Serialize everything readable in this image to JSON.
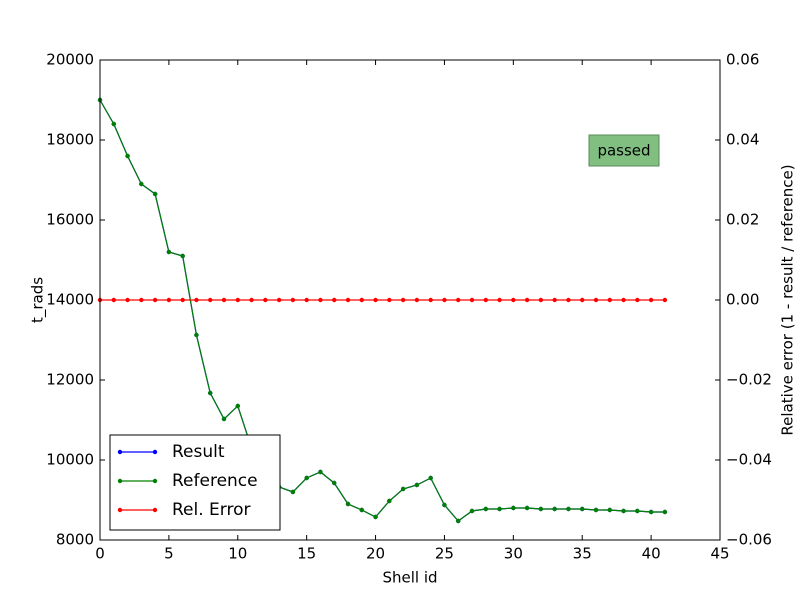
{
  "chart_data": {
    "type": "line",
    "xlabel": "Shell id",
    "ylabel": "t_rads",
    "y2label": "Relative error (1 - result / reference)",
    "annotation": "passed",
    "annotation_color": "#80bf80",
    "legend": "lower left",
    "x": [
      0,
      1,
      2,
      3,
      4,
      5,
      6,
      7,
      8,
      9,
      10,
      11,
      12,
      13,
      14,
      15,
      16,
      17,
      18,
      19,
      20,
      21,
      22,
      23,
      24,
      25,
      26,
      27,
      28,
      29,
      30,
      31,
      32,
      33,
      34,
      35,
      36,
      37,
      38,
      39,
      40,
      41
    ],
    "xlim": [
      0,
      45
    ],
    "xticks": [
      0,
      5,
      10,
      15,
      20,
      25,
      30,
      35,
      40,
      45
    ],
    "ylim": [
      8000,
      20000
    ],
    "yticks": [
      8000,
      10000,
      12000,
      14000,
      16000,
      18000,
      20000
    ],
    "y2lim": [
      -0.06,
      0.06
    ],
    "y2ticks": [
      {
        "value": -0.06,
        "label": "−0.06"
      },
      {
        "value": -0.04,
        "label": "−0.04"
      },
      {
        "value": -0.02,
        "label": "−0.02"
      },
      {
        "value": 0,
        "label": "0.00"
      },
      0.02,
      0.04,
      0.06
    ],
    "series": [
      {
        "name": "Result",
        "color": "#0000ff",
        "values": [
          19000,
          18400,
          17600,
          16900,
          16650,
          15200,
          15100,
          13125,
          11675,
          11025,
          11350,
          10300,
          9500,
          9325,
          9200,
          9550,
          9700,
          9425,
          8900,
          8750,
          8575,
          8975,
          9275,
          9375,
          9550,
          8875,
          8475,
          8725,
          8775,
          8775,
          8800,
          8800,
          8775,
          8775,
          8775,
          8775,
          8750,
          8750,
          8725,
          8725,
          8700,
          8700
        ]
      },
      {
        "name": "Reference",
        "color": "#008000",
        "values": [
          19000,
          18400,
          17600,
          16900,
          16650,
          15200,
          15100,
          13125,
          11675,
          11025,
          11350,
          10300,
          9500,
          9325,
          9200,
          9550,
          9700,
          9425,
          8900,
          8750,
          8575,
          8975,
          9275,
          9375,
          9550,
          8875,
          8475,
          8725,
          8775,
          8775,
          8800,
          8800,
          8775,
          8775,
          8775,
          8775,
          8750,
          8750,
          8725,
          8725,
          8700,
          8700
        ]
      },
      {
        "name": "Rel. Error",
        "color": "#ff0000",
        "axis": "y2",
        "values": [
          0,
          0,
          0,
          0,
          0,
          0,
          0,
          0,
          0,
          0,
          0,
          0,
          0,
          0,
          0,
          0,
          0,
          0,
          0,
          0,
          0,
          0,
          0,
          0,
          0,
          0,
          0,
          0,
          0,
          0,
          0,
          0,
          0,
          0,
          0,
          0,
          0,
          0,
          0,
          0,
          0,
          0
        ]
      }
    ]
  }
}
